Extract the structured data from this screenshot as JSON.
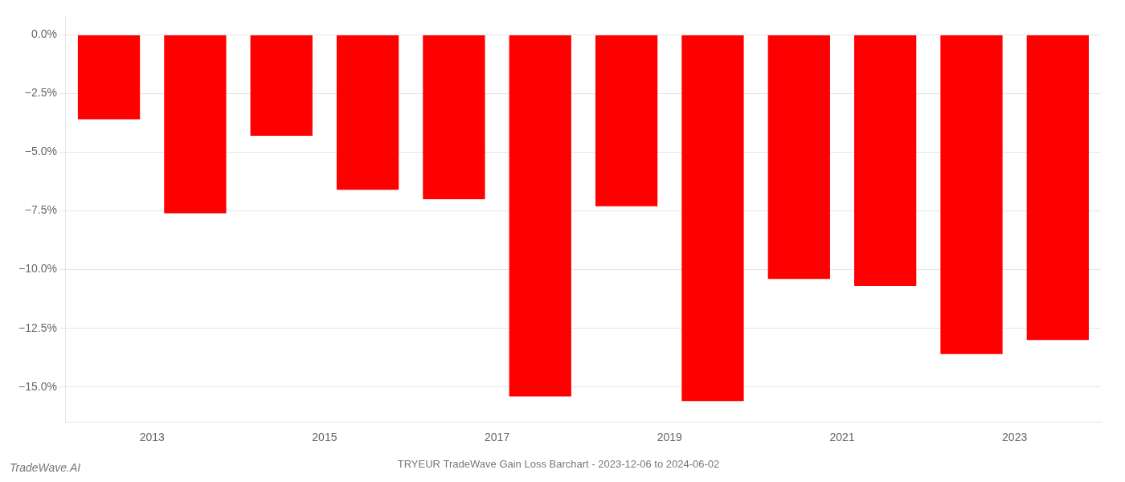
{
  "chart_data": {
    "type": "bar",
    "title": "TRYEUR TradeWave Gain Loss Barchart - 2023-12-06 to 2024-06-02",
    "annotations": [
      "TradeWave.AI"
    ],
    "categories": [
      "2013",
      null,
      "2015",
      null,
      "2017",
      null,
      "2019",
      null,
      "2021",
      null,
      "2023",
      null
    ],
    "values": [
      -3.6,
      -7.6,
      -4.3,
      -6.6,
      -7.0,
      -15.4,
      -7.3,
      -15.6,
      -10.4,
      -10.7,
      -13.6,
      -13.0
    ],
    "color": "#ff0000",
    "ylim": [
      -16.5,
      0.8
    ],
    "yticks": [
      {
        "value": 0.0,
        "label": "0.0%"
      },
      {
        "value": -2.5,
        "label": "−2.5%"
      },
      {
        "value": -5.0,
        "label": "−5.0%"
      },
      {
        "value": -7.5,
        "label": "−7.5%"
      },
      {
        "value": -10.0,
        "label": "−10.0%"
      },
      {
        "value": -12.5,
        "label": "−12.5%"
      },
      {
        "value": -15.0,
        "label": "−15.0%"
      }
    ],
    "grid": true
  }
}
